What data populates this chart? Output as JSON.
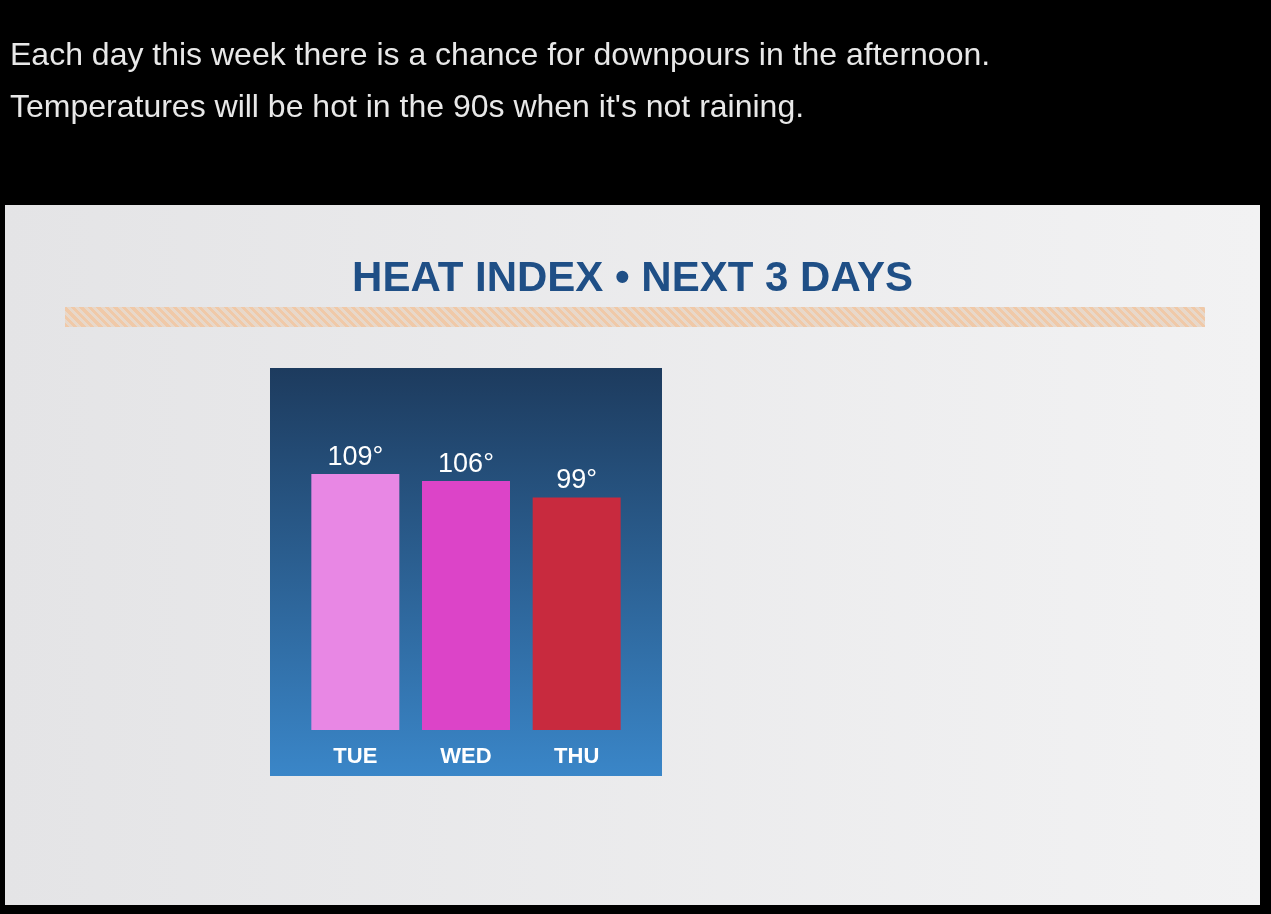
{
  "chart_data": {
    "type": "bar",
    "title": "HEAT INDEX • NEXT 3 DAYS",
    "subtitle": "Each day this week there is a chance for downpours in the afternoon. Temperatures will be hot in the 90s when it's not raining.",
    "categories": [
      "TUE",
      "WED",
      "THU"
    ],
    "values": [
      109,
      106,
      99
    ],
    "colors": [
      "#e887e4",
      "#dc44c8",
      "#c82a3e"
    ],
    "value_labels": [
      "109°",
      "106°",
      "99°"
    ]
  }
}
